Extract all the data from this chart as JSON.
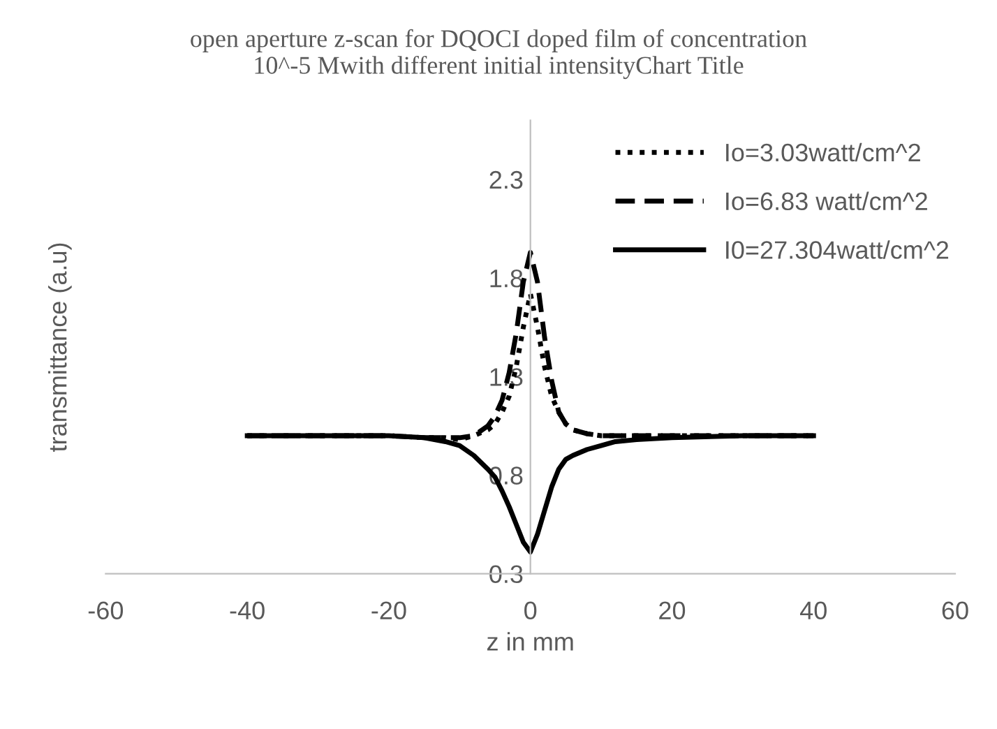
{
  "chart_data": {
    "type": "line",
    "title": "open aperture z-scan for DQOCI doped film of concentration\n10^-5 Mwith different initial intensityChart Title",
    "xlabel": "z in mm",
    "ylabel": "transmittance (a.u)",
    "x": [
      -40,
      -30,
      -20,
      -15,
      -12,
      -10,
      -8,
      -6,
      -5,
      -4,
      -3,
      -2,
      -1,
      0,
      1,
      2,
      3,
      4,
      5,
      6,
      8,
      10,
      12,
      15,
      20,
      30,
      40
    ],
    "series": [
      {
        "name": "Io=3.03watt/cm^2",
        "color": "#000000",
        "line_style": "dotted",
        "values": [
          1.0,
          1.0,
          1.0,
          0.99,
          0.99,
          0.98,
          1.0,
          1.03,
          1.06,
          1.12,
          1.2,
          1.35,
          1.55,
          1.72,
          1.55,
          1.35,
          1.2,
          1.12,
          1.06,
          1.03,
          1.01,
          1.0,
          1.0,
          1.0,
          1.0,
          1.0,
          1.0
        ]
      },
      {
        "name": "Io=6.83 watt/cm^2",
        "color": "#000000",
        "line_style": "dashed",
        "values": [
          1.0,
          1.0,
          1.0,
          0.99,
          0.99,
          0.99,
          1.0,
          1.05,
          1.1,
          1.18,
          1.32,
          1.52,
          1.78,
          1.93,
          1.78,
          1.5,
          1.28,
          1.12,
          1.06,
          1.03,
          1.01,
          1.0,
          1.0,
          1.0,
          1.0,
          1.0,
          1.0
        ]
      },
      {
        "name": "I0=27.304watt/cm^2",
        "color": "#000000",
        "line_style": "solid",
        "values": [
          1.0,
          1.0,
          1.0,
          0.99,
          0.97,
          0.95,
          0.9,
          0.83,
          0.79,
          0.72,
          0.64,
          0.55,
          0.46,
          0.41,
          0.5,
          0.62,
          0.74,
          0.83,
          0.88,
          0.9,
          0.93,
          0.95,
          0.97,
          0.98,
          0.99,
          1.0,
          1.0
        ]
      }
    ],
    "xlim": [
      -60,
      60
    ],
    "xticks": [
      -60,
      -40,
      -20,
      0,
      20,
      40,
      60
    ],
    "ylim": [
      0.3,
      2.6
    ],
    "yticks": [
      0.3,
      0.8,
      1.3,
      1.8,
      2.3
    ],
    "grid": false,
    "legend": "top right",
    "marker": "none"
  }
}
